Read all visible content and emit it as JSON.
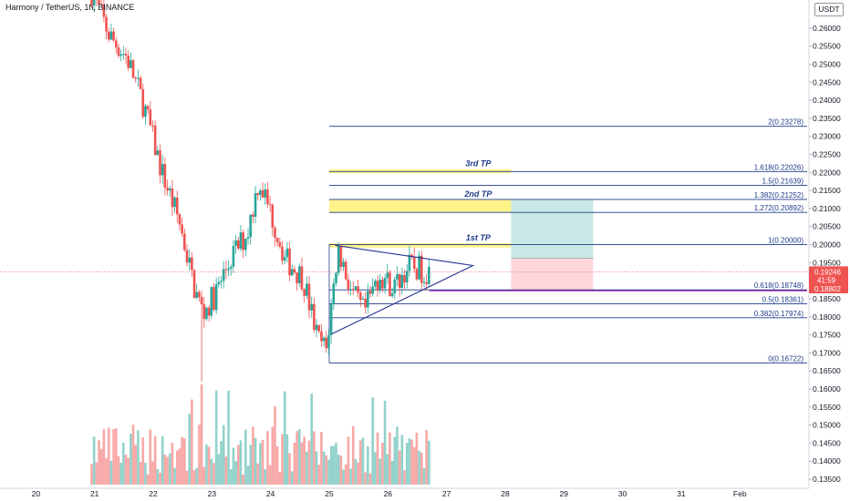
{
  "header": {
    "title": "Harmony / TetherUS, 1h, BINANCE",
    "unit": "USDT"
  },
  "colors": {
    "up": "#26a69a",
    "down": "#ef5350",
    "fib_line": "#1e3a8a",
    "tp_fill": "#fff176",
    "profit_zone": "#b2dfdb",
    "loss_zone": "#ffcdd2",
    "last_price_bg": "#ef5350",
    "sl_line": "#9c27b0"
  },
  "chart_data": {
    "type": "candlestick",
    "symbol": "Harmony / TetherUS",
    "interval": "1h",
    "exchange": "BINANCE",
    "y_unit": "USDT",
    "ylim": [
      0.1335,
      0.2645
    ],
    "y_ticks": [
      "0.26000",
      "0.25500",
      "0.25000",
      "0.24500",
      "0.24000",
      "0.23500",
      "0.23000",
      "0.22500",
      "0.22000",
      "0.21500",
      "0.21000",
      "0.20500",
      "0.20000",
      "0.19500",
      "0.19000",
      "0.18500",
      "0.18000",
      "0.17500",
      "0.17000",
      "0.16500",
      "0.16000",
      "0.15500",
      "0.15000",
      "0.14500",
      "0.14000",
      "0.13500"
    ],
    "x_ticks": [
      {
        "label": "20",
        "day": 20
      },
      {
        "label": "21",
        "day": 21
      },
      {
        "label": "22",
        "day": 22
      },
      {
        "label": "23",
        "day": 23
      },
      {
        "label": "24",
        "day": 24
      },
      {
        "label": "25",
        "day": 25
      },
      {
        "label": "26",
        "day": 26
      },
      {
        "label": "27",
        "day": 27
      },
      {
        "label": "28",
        "day": 28
      },
      {
        "label": "29",
        "day": 29
      },
      {
        "label": "30",
        "day": 30
      },
      {
        "label": "31",
        "day": 31
      },
      {
        "label": "Feb",
        "day": 32
      }
    ],
    "x_range_days": [
      19.45,
      33.1
    ],
    "price_path": [
      [
        20.95,
        0.27
      ],
      [
        21.25,
        0.258
      ],
      [
        21.55,
        0.252
      ],
      [
        21.85,
        0.238
      ],
      [
        22.15,
        0.22
      ],
      [
        22.45,
        0.206
      ],
      [
        22.7,
        0.188
      ],
      [
        22.85,
        0.181
      ],
      [
        23.05,
        0.186
      ],
      [
        23.35,
        0.197
      ],
      [
        23.6,
        0.203
      ],
      [
        23.8,
        0.218
      ],
      [
        24.0,
        0.209
      ],
      [
        24.25,
        0.196
      ],
      [
        24.55,
        0.191
      ],
      [
        24.8,
        0.174
      ],
      [
        24.95,
        0.171
      ],
      [
        25.15,
        0.199
      ],
      [
        25.4,
        0.186
      ],
      [
        25.6,
        0.181
      ],
      [
        25.85,
        0.192
      ],
      [
        26.1,
        0.188
      ],
      [
        26.35,
        0.194
      ],
      [
        26.7,
        0.1925
      ]
    ],
    "fib_levels": [
      {
        "ratio": "2",
        "price": 0.23278,
        "label": "2(0.23278)"
      },
      {
        "ratio": "1.618",
        "price": 0.22026,
        "label": "1.618(0.22026)"
      },
      {
        "ratio": "1.5",
        "price": 0.21639,
        "label": "1.5(0.21639)"
      },
      {
        "ratio": "1.382",
        "price": 0.21252,
        "label": "1.382(0.21252)"
      },
      {
        "ratio": "1.272",
        "price": 0.20892,
        "label": "1.272(0.20892)"
      },
      {
        "ratio": "1",
        "price": 0.2,
        "label": "1(0.20000)"
      },
      {
        "ratio": "0.618",
        "price": 0.18748,
        "label": "0.618(0.18748)"
      },
      {
        "ratio": "0.5",
        "price": 0.18361,
        "label": "0.5(0.18361)"
      },
      {
        "ratio": "0.382",
        "price": 0.17974,
        "label": "0.382(0.17974)"
      },
      {
        "ratio": "0",
        "price": 0.16722,
        "label": "0(0.16722)"
      }
    ],
    "fib_start_day": 25.0,
    "tp_zones": [
      {
        "label": "3rd TP",
        "low": 0.2198,
        "high": 0.2209
      },
      {
        "label": "2nd TP",
        "low": 0.20892,
        "high": 0.21252
      },
      {
        "label": "1st TP",
        "low": 0.1992,
        "high": 0.2004
      }
    ],
    "tp_zone_end_day": 28.1,
    "triangle": {
      "apex": [
        27.45,
        0.1942
      ],
      "upper": [
        25.1,
        0.1998
      ],
      "lower": [
        25.05,
        0.1753
      ]
    },
    "position": {
      "start_day": 28.1,
      "end_day": 29.5,
      "entry": 0.1962,
      "target": 0.21252,
      "stop": 0.18748
    },
    "last_price": {
      "price": "0.19246",
      "countdown": "41:59",
      "value": 0.19246
    },
    "stop_price_tag": {
      "price": "0.18802",
      "value": 0.18802
    },
    "volume_max_ratio": 0.27
  }
}
